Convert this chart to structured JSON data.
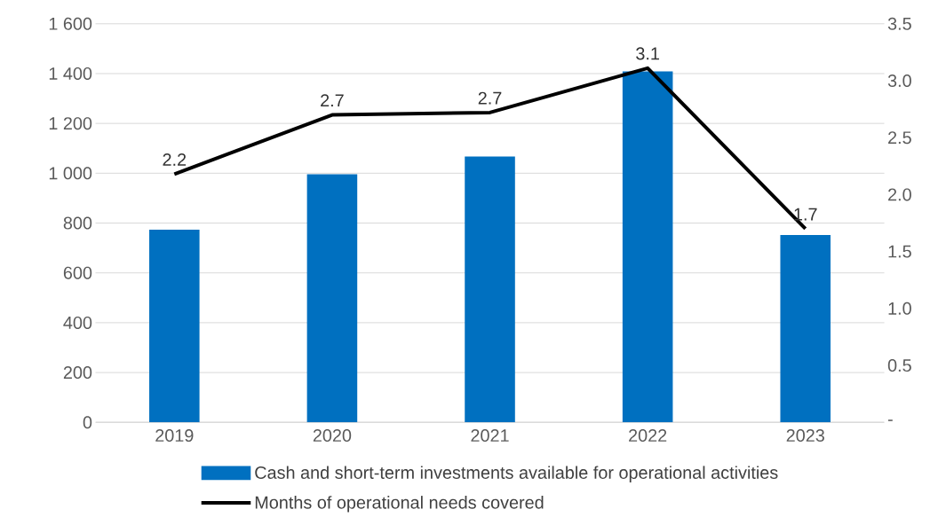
{
  "chart_data": {
    "type": "bar",
    "categories": [
      "2019",
      "2020",
      "2021",
      "2022",
      "2023"
    ],
    "series": [
      {
        "name": "Cash and short-term investments available for operational activities",
        "color": "#0070c0",
        "values": [
          773,
          996,
          1067,
          1409,
          752
        ]
      },
      {
        "name": "Months of operational needs covered",
        "type": "line",
        "axis": "y2",
        "color": "#000000",
        "values": [
          2.18,
          2.7,
          2.72,
          3.11,
          1.7
        ],
        "value_labels": [
          "2.2",
          "2.7",
          "2.7",
          "3.1",
          "1.7"
        ]
      }
    ],
    "ylim": [
      0,
      1600
    ],
    "yticks": [
      0,
      200,
      400,
      600,
      800,
      {
        "value": 1000,
        "label": "1 000"
      },
      {
        "value": 1200,
        "label": "1 200"
      },
      {
        "value": 1400,
        "label": "1 400"
      },
      {
        "value": 1600,
        "label": "1 600"
      }
    ],
    "y2lim": [
      0,
      3.5
    ],
    "y2ticks": [
      {
        "value": 0,
        "label": "-"
      },
      0.5,
      {
        "value": 1,
        "label": "1.0"
      },
      1.5,
      {
        "value": 2,
        "label": "2.0"
      },
      2.5,
      {
        "value": 3,
        "label": "3.0"
      },
      3.5
    ],
    "grid": "y",
    "legend": "bottom"
  }
}
